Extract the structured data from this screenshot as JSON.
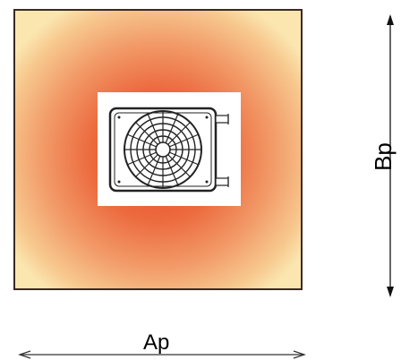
{
  "dimensions": {
    "height_label": "Bp",
    "width_label": "Ap"
  },
  "colors": {
    "center": "#e8452a",
    "edge": "#fbe6b0",
    "outline": "#3a2a22"
  },
  "icons": [
    "fan-unit-icon",
    "arrow-up-icon",
    "arrow-down-icon"
  ]
}
